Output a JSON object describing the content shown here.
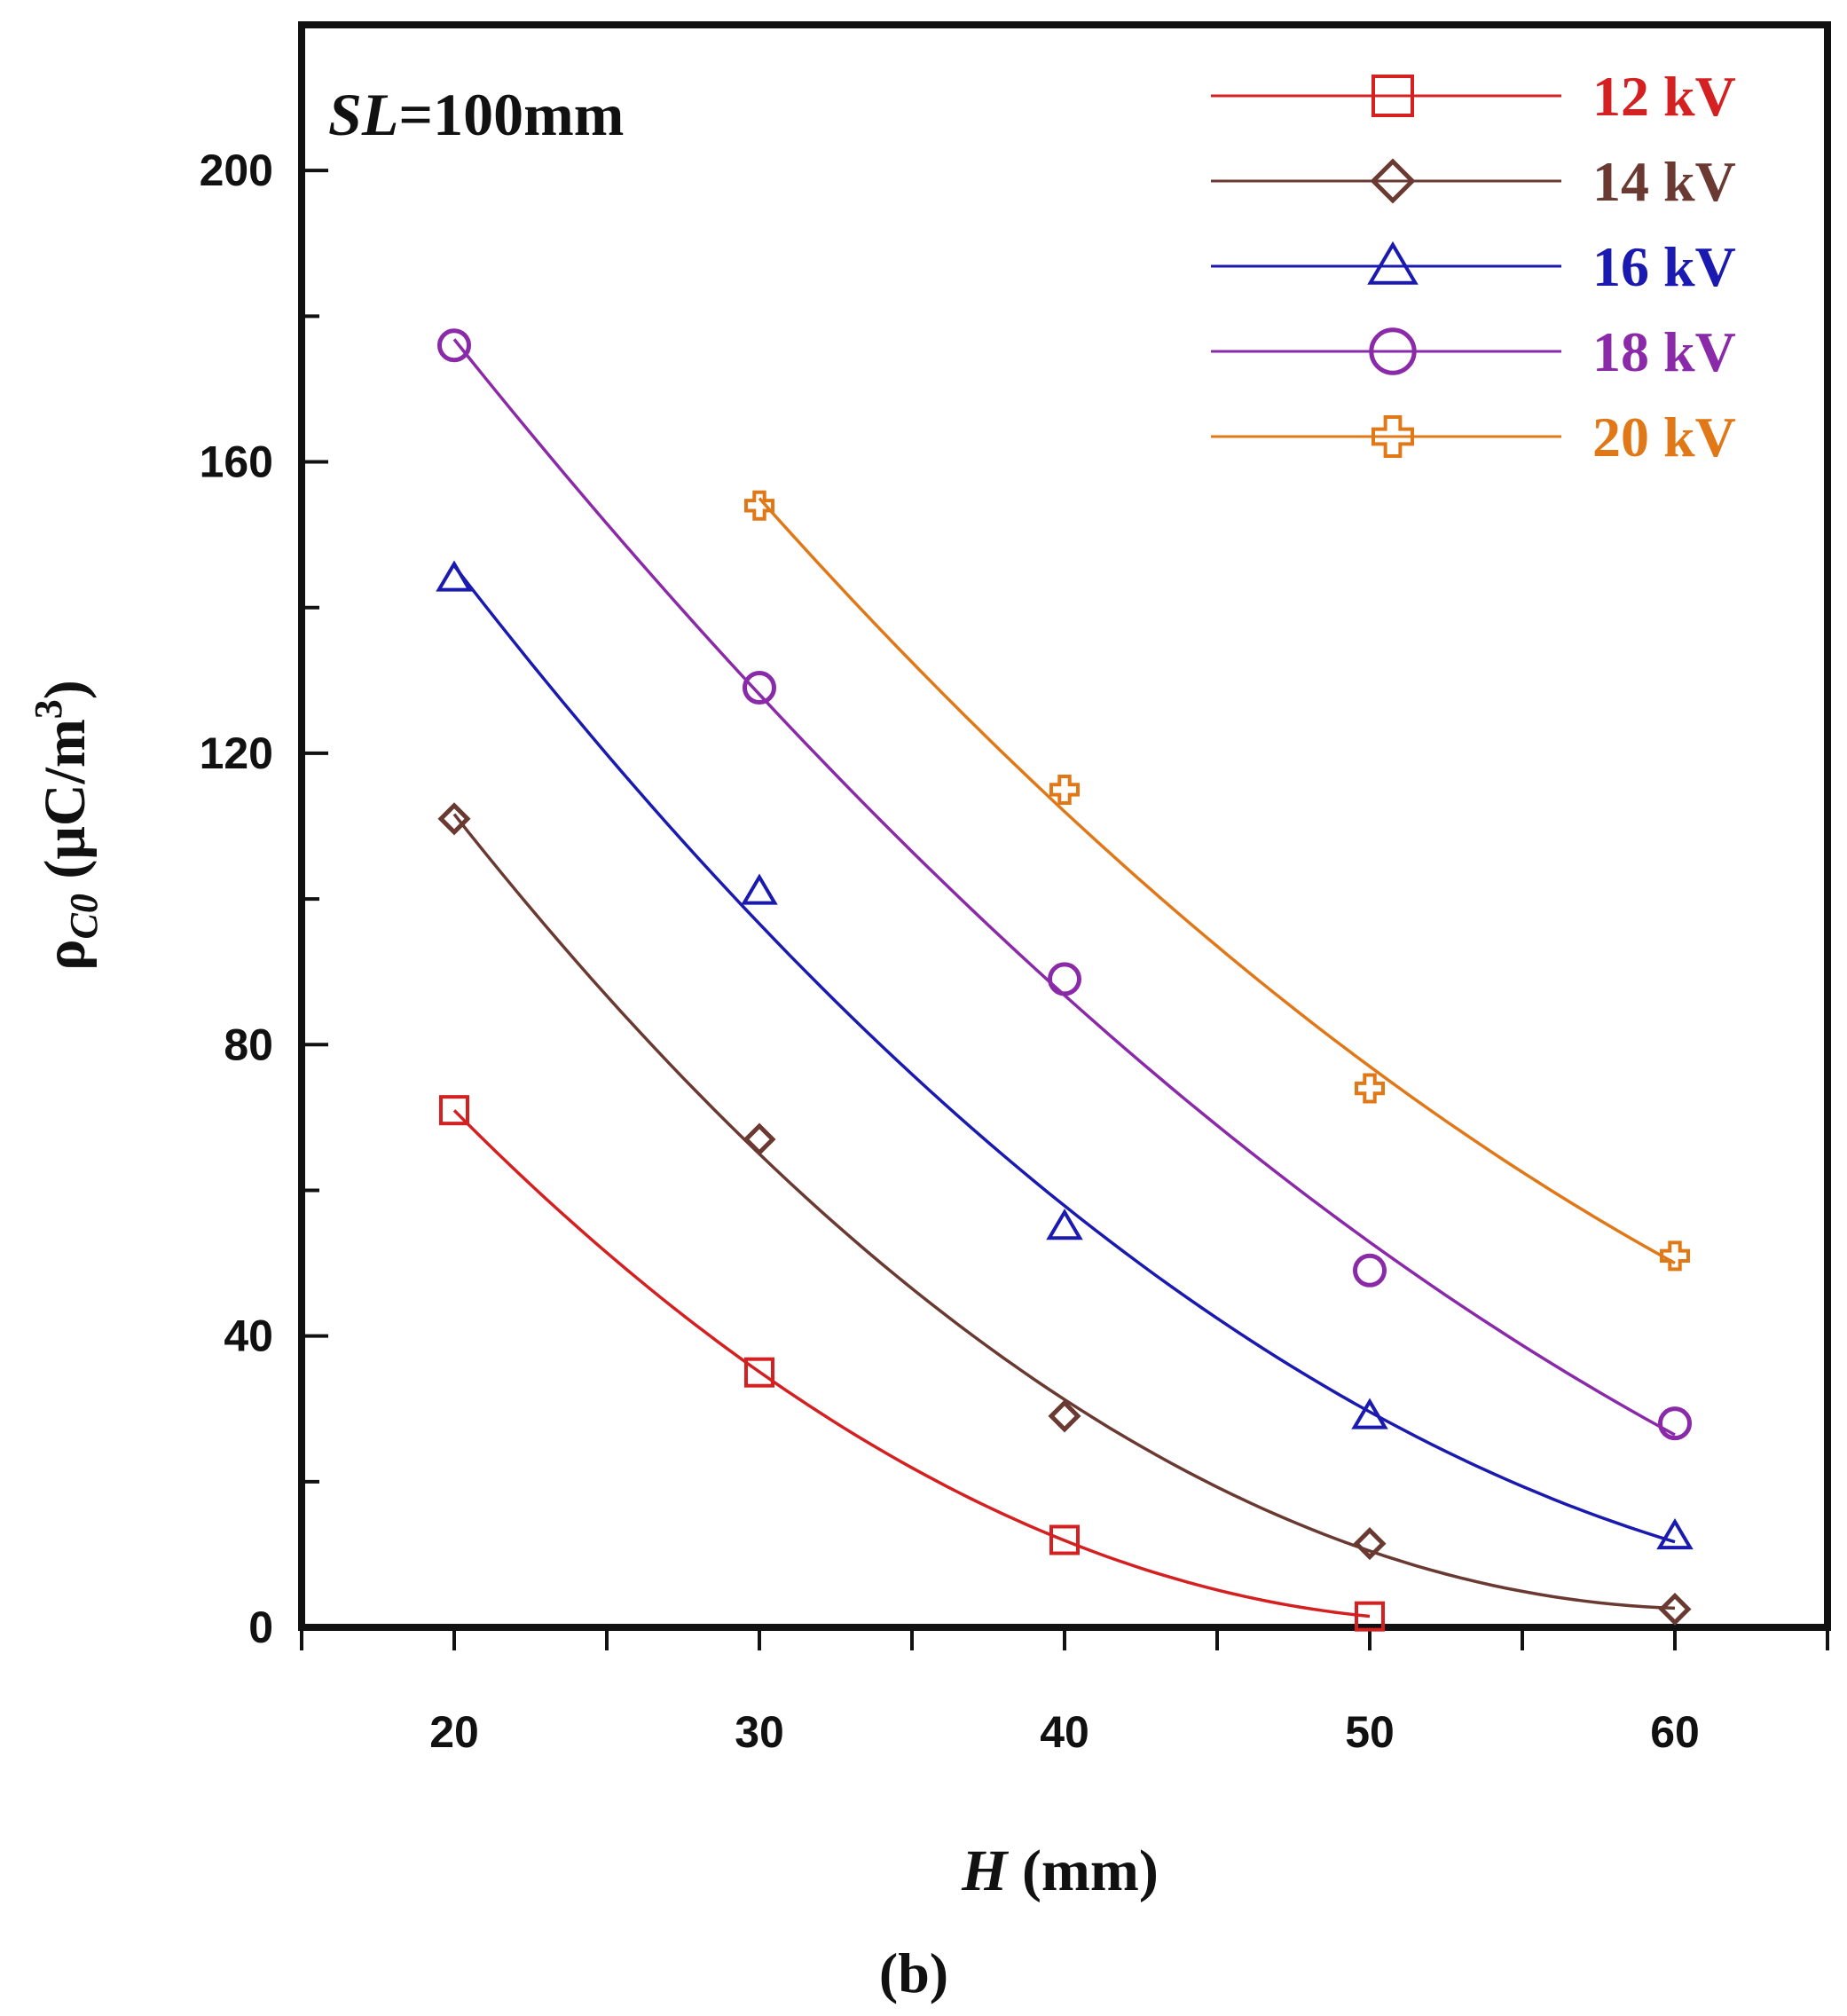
{
  "chart_data": {
    "type": "line",
    "title": "",
    "annotation": {
      "italic": "SL",
      "rest": "=100mm"
    },
    "xlabel": {
      "italic": "H",
      "rest": " (mm)"
    },
    "ylabel": {
      "symbol": "ρ",
      "subscript": "C0",
      "units_prefix": " (μC/m",
      "units_superscript": "3",
      "units_suffix": ")"
    },
    "xlim": [
      15,
      65
    ],
    "ylim": [
      0,
      220
    ],
    "xticks": [
      20,
      30,
      40,
      50,
      60
    ],
    "yticks": [
      0,
      40,
      80,
      120,
      160,
      200
    ],
    "grid": false,
    "legend_position": "top-right",
    "panel_label": "(b)",
    "series": [
      {
        "name": "12 kV",
        "color": "#d42020",
        "marker": "square",
        "x": [
          20,
          30,
          40,
          50
        ],
        "y": [
          71,
          35,
          12,
          1.5
        ]
      },
      {
        "name": "14 kV",
        "color": "#6a3a32",
        "marker": "diamond",
        "x": [
          20,
          30,
          40,
          50,
          60
        ],
        "y": [
          111,
          67,
          29,
          11.5,
          2.5
        ]
      },
      {
        "name": "16 kV",
        "color": "#1a1ab0",
        "marker": "triangle",
        "x": [
          20,
          30,
          40,
          50,
          60
        ],
        "y": [
          144,
          101,
          55,
          29,
          12.5
        ]
      },
      {
        "name": "18 kV",
        "color": "#8a2aa8",
        "marker": "circle",
        "x": [
          20,
          30,
          40,
          50,
          60
        ],
        "y": [
          176,
          129,
          89,
          49,
          28
        ]
      },
      {
        "name": "20 kV",
        "color": "#e07818",
        "marker": "cross",
        "x": [
          30,
          40,
          50,
          60
        ],
        "y": [
          154,
          115,
          74,
          51
        ]
      }
    ]
  }
}
